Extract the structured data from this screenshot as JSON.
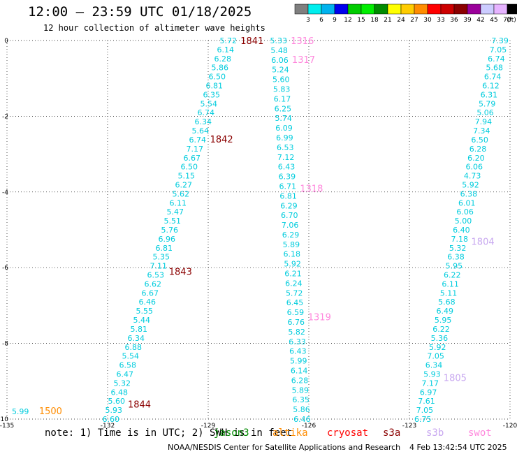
{
  "header": {
    "title": "12:00 – 23:59 UTC 01/18/2025",
    "subtitle": "12 hour collection of altimeter wave heights"
  },
  "colorbar": {
    "unit": "(ft)",
    "levels": [
      "3",
      "6",
      "9",
      "12",
      "15",
      "18",
      "21",
      "24",
      "27",
      "30",
      "33",
      "36",
      "39",
      "42",
      "45",
      "70"
    ],
    "colors": [
      "#7f7f7f",
      "#00eeee",
      "#00b2ee",
      "#0000ee",
      "#00cc00",
      "#00ee00",
      "#008b00",
      "#ffff00",
      "#ffcc00",
      "#ff8c00",
      "#ff0000",
      "#cd0000",
      "#8b0000",
      "#9a009a",
      "#ccccff",
      "#e6b3ff",
      "#000000"
    ]
  },
  "footer": {
    "note": "note: 1) Time is in UTC; 2) SWH is in feet",
    "credit": "NOAA/NESDIS Center for Satellite Applications and Research",
    "timestamp": "4 Feb 13:42:54 UTC 2025",
    "satellites": [
      {
        "name": "jason3",
        "color": "#008b00"
      },
      {
        "name": "altika",
        "color": "#ff8c00"
      },
      {
        "name": "cryosat",
        "color": "#ff0000"
      },
      {
        "name": "s3a",
        "color": "#8b0000"
      },
      {
        "name": "s3b",
        "color": "#c8a8f0"
      },
      {
        "name": "swot",
        "color": "#ff88dd"
      }
    ]
  },
  "chart_data": {
    "type": "scatter",
    "xlim": [
      -135,
      -123
    ],
    "ylim": [
      -10,
      0
    ],
    "x_ticks": [
      -135,
      -132,
      -129,
      -126,
      -123,
      -120
    ],
    "y_ticks": [
      0,
      -2,
      -4,
      -6,
      -8,
      -10
    ],
    "grid": true,
    "wave_color": "#00ccdd",
    "tracks": [
      {
        "x0": -128.4,
        "x1": -131.9,
        "y0": 0,
        "y1": -10,
        "values": [
          "5.72",
          "6.14",
          "6.28",
          "5.86",
          "6.50",
          "6.81",
          "6.35",
          "5.54",
          "6.74",
          "6.34",
          "5.64",
          "6.74",
          "7.17",
          "6.67",
          "6.50",
          "5.15",
          "6.27",
          "5.62",
          "6.11",
          "5.47",
          "5.51",
          "5.76",
          "6.96",
          "6.81",
          "5.35",
          "7.11",
          "6.53",
          "6.62",
          "6.67",
          "6.46",
          "5.55",
          "5.44",
          "5.81",
          "6.34",
          "6.88",
          "5.54",
          "6.58",
          "6.47",
          "5.32",
          "6.48",
          "5.60",
          "5.93",
          "6.60"
        ],
        "times": [
          {
            "label": "1841",
            "lat": 0,
            "color": "#8b0000"
          },
          {
            "label": "1842",
            "lat": -2.6,
            "color": "#8b0000"
          },
          {
            "label": "1843",
            "lat": -6.1,
            "color": "#8b0000"
          },
          {
            "label": "1844",
            "lat": -9.6,
            "color": "#8b0000"
          }
        ]
      },
      {
        "x0": -126.9,
        "x1": -126.2,
        "y0": 0,
        "y1": -10,
        "values": [
          "5.33",
          "5.48",
          "6.06",
          "5.24",
          "5.60",
          "5.83",
          "6.17",
          "6.25",
          "5.74",
          "6.09",
          "6.99",
          "6.53",
          "7.12",
          "6.43",
          "6.39",
          "6.71",
          "6.81",
          "6.29",
          "6.70",
          "7.06",
          "6.29",
          "5.89",
          "6.18",
          "5.92",
          "6.21",
          "6.24",
          "5.72",
          "6.45",
          "6.59",
          "6.76",
          "5.82",
          "6.33",
          "6.43",
          "5.99",
          "6.14",
          "6.28",
          "5.89",
          "6.35",
          "5.86",
          "6.46"
        ],
        "times": [
          {
            "label": "1316",
            "lat": 0,
            "color": "#ff88dd"
          },
          {
            "label": "1317",
            "lat": -0.5,
            "color": "#ff88dd"
          },
          {
            "label": "1318",
            "lat": -3.9,
            "color": "#ff88dd"
          },
          {
            "label": "1319",
            "lat": -7.3,
            "color": "#ff88dd"
          }
        ]
      },
      {
        "x0": -120.3,
        "x1": -122.6,
        "y0": 0,
        "y1": -10,
        "values": [
          "7.39",
          "7.05",
          "6.74",
          "5.68",
          "6.74",
          "6.12",
          "6.31",
          "5.79",
          "5.06",
          "7.94",
          "7.34",
          "6.50",
          "6.28",
          "6.20",
          "6.06",
          "4.73",
          "5.92",
          "6.38",
          "6.01",
          "6.06",
          "5.00",
          "6.40",
          "7.18",
          "5.32",
          "6.38",
          "5.95",
          "6.22",
          "6.11",
          "5.11",
          "5.68",
          "6.49",
          "5.95",
          "6.22",
          "5.36",
          "5.92",
          "7.05",
          "6.34",
          "5.93",
          "7.17",
          "6.97",
          "7.61",
          "7.05",
          "6.75"
        ],
        "times": [
          {
            "label": "1804",
            "lat": -5.3,
            "color": "#c8a8f0"
          },
          {
            "label": "1805",
            "lat": -8.9,
            "color": "#c8a8f0"
          }
        ]
      }
    ],
    "points": [
      {
        "x": -134.6,
        "y": -9.8,
        "value": "5.99",
        "color": "#00ccdd"
      },
      {
        "x": -133.7,
        "y": -9.8,
        "value": "1500",
        "color": "#ff8c00"
      }
    ]
  }
}
